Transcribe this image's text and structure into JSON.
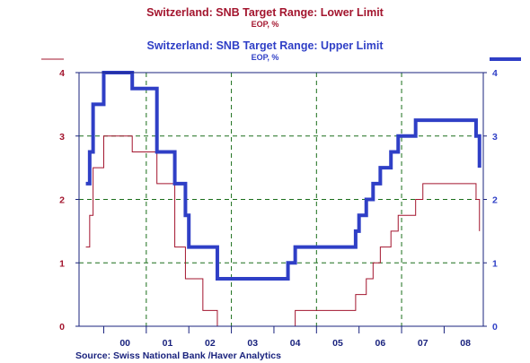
{
  "colors": {
    "lower": "#a3152e",
    "upper": "#2f3fc6",
    "grid": "#1a6e1a",
    "axis": "#1a237e"
  },
  "chart_data": {
    "type": "line",
    "title": "Switzerland: SNB Target Range: Lower Limit",
    "subtitle": "EOP, %",
    "title2": "Switzerland: SNB Target Range: Upper Limit",
    "subtitle2": "EOP, %",
    "source": "Source:  Swiss National Bank /Haver Analytics",
    "x_tick_labels": [
      "00",
      "01",
      "02",
      "03",
      "04",
      "05",
      "06",
      "07",
      "08"
    ],
    "y_ticks": [
      "0",
      "1",
      "2",
      "3",
      "4"
    ],
    "ylim": [
      0,
      4
    ],
    "xlim": [
      1999.42,
      2008.92
    ],
    "grid": true,
    "series": [
      {
        "name": "Switzerland: SNB Target Range: Lower Limit",
        "axis": "left",
        "x": [
          1999.58,
          1999.67,
          1999.75,
          1999.92,
          2000.0,
          2000.5,
          2000.67,
          2001.08,
          2001.25,
          2001.67,
          2001.75,
          2001.92,
          2002.0,
          2002.33,
          2002.58,
          2002.67,
          2003.0,
          2003.33,
          2003.67,
          2003.92,
          2004.0,
          2004.33,
          2004.5,
          2004.75,
          2005.0,
          2005.25,
          2005.75,
          2005.92,
          2006.0,
          2006.17,
          2006.33,
          2006.5,
          2006.58,
          2006.75,
          2006.92,
          2007.17,
          2007.33,
          2007.5,
          2007.75,
          2008.0,
          2008.25,
          2008.5,
          2008.75,
          2008.83
        ],
        "values": [
          1.25,
          1.75,
          2.5,
          2.5,
          3.0,
          3.0,
          2.75,
          2.75,
          2.25,
          1.25,
          1.25,
          0.75,
          0.75,
          0.25,
          0.25,
          0.0,
          0.0,
          0.0,
          0.0,
          0.0,
          0.0,
          0.0,
          0.25,
          0.25,
          0.25,
          0.25,
          0.25,
          0.5,
          0.5,
          0.75,
          1.0,
          1.25,
          1.25,
          1.5,
          1.75,
          1.75,
          2.0,
          2.25,
          2.25,
          2.25,
          2.25,
          2.25,
          2.0,
          1.5
        ]
      },
      {
        "name": "Switzerland: SNB Target Range: Upper Limit",
        "axis": "right",
        "x": [
          1999.58,
          1999.67,
          1999.75,
          1999.92,
          2000.0,
          2000.5,
          2000.67,
          2001.08,
          2001.25,
          2001.67,
          2001.75,
          2001.92,
          2002.0,
          2002.33,
          2002.58,
          2002.67,
          2003.0,
          2003.33,
          2003.67,
          2003.92,
          2004.0,
          2004.33,
          2004.5,
          2004.75,
          2005.0,
          2005.25,
          2005.75,
          2005.92,
          2006.0,
          2006.17,
          2006.33,
          2006.5,
          2006.58,
          2006.75,
          2006.92,
          2007.17,
          2007.33,
          2007.5,
          2007.75,
          2008.0,
          2008.25,
          2008.5,
          2008.75,
          2008.83
        ],
        "values": [
          2.25,
          2.75,
          3.5,
          3.5,
          4.0,
          4.0,
          3.75,
          3.75,
          2.75,
          2.25,
          2.25,
          1.75,
          1.25,
          1.25,
          1.25,
          0.75,
          0.75,
          0.75,
          0.75,
          0.75,
          0.75,
          1.0,
          1.25,
          1.25,
          1.25,
          1.25,
          1.25,
          1.5,
          1.75,
          2.0,
          2.25,
          2.5,
          2.5,
          2.75,
          3.0,
          3.0,
          3.25,
          3.25,
          3.25,
          3.25,
          3.25,
          3.25,
          3.0,
          2.5
        ]
      }
    ]
  }
}
